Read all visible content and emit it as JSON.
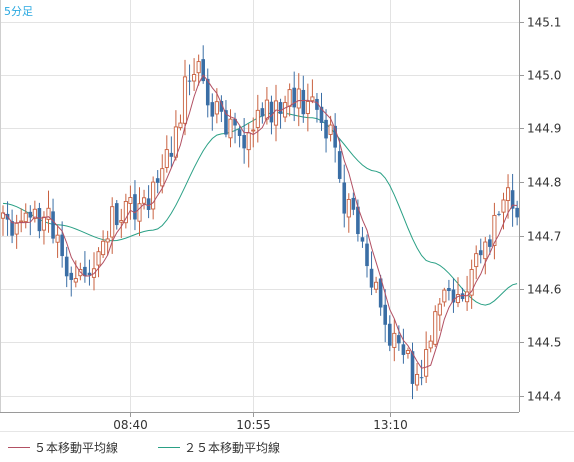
{
  "chart_data": {
    "type": "candlestick",
    "timeframe_label": "5分足",
    "y_ticks": [
      144.4,
      144.5,
      144.6,
      144.7,
      144.8,
      144.9,
      145.0,
      145.1
    ],
    "y_tick_labels": [
      "144.4",
      "144.5",
      "144.6",
      "144.7",
      "144.8",
      "144.9",
      "145.0",
      "145.1"
    ],
    "x_tick_labels": [
      "08:40",
      "10:55",
      "13:10"
    ],
    "ylim": [
      144.37,
      145.14
    ],
    "grid": true,
    "legend_position": "bottom-left",
    "colors": {
      "up": "#c8603f",
      "down": "#3a6ea5",
      "ma5": "#b25063",
      "ma25": "#2aa085",
      "timeframe": "#29a8e0"
    },
    "series": [
      {
        "name": "５本移動平均線",
        "color": "#b25063"
      },
      {
        "name": "２５本移動平均線",
        "color": "#2aa085"
      }
    ],
    "anchor_candles": [
      {
        "index": 0,
        "close": 144.72
      },
      {
        "index": 10,
        "close": 144.73
      },
      {
        "index": 15,
        "close": 144.62
      },
      {
        "index": 20,
        "close": 144.65
      },
      {
        "index": 25,
        "close": 144.74
      },
      {
        "index": 31,
        "close": 144.76
      },
      {
        "index": 36,
        "close": 144.85
      },
      {
        "index": 42,
        "close": 145.02
      },
      {
        "index": 47,
        "close": 144.93
      },
      {
        "index": 52,
        "close": 144.88
      },
      {
        "index": 57,
        "close": 144.93
      },
      {
        "index": 63,
        "close": 144.95
      },
      {
        "index": 67,
        "close": 144.95
      },
      {
        "index": 71,
        "close": 144.9
      },
      {
        "index": 76,
        "close": 144.75
      },
      {
        "index": 81,
        "close": 144.62
      },
      {
        "index": 86,
        "close": 144.5
      },
      {
        "index": 91,
        "close": 144.44
      },
      {
        "index": 96,
        "close": 144.57
      },
      {
        "index": 101,
        "close": 144.6
      },
      {
        "index": 106,
        "close": 144.69
      },
      {
        "index": 111,
        "close": 144.78
      },
      {
        "index": 113,
        "close": 144.75
      }
    ],
    "ma25_anchors": [
      {
        "index": 0,
        "value": 144.76
      },
      {
        "index": 12,
        "value": 144.72
      },
      {
        "index": 24,
        "value": 144.69
      },
      {
        "index": 33,
        "value": 144.71
      },
      {
        "index": 48,
        "value": 144.89
      },
      {
        "index": 60,
        "value": 144.93
      },
      {
        "index": 68,
        "value": 144.92
      },
      {
        "index": 82,
        "value": 144.82
      },
      {
        "index": 94,
        "value": 144.65
      },
      {
        "index": 106,
        "value": 144.57
      },
      {
        "index": 113,
        "value": 144.61
      }
    ]
  }
}
